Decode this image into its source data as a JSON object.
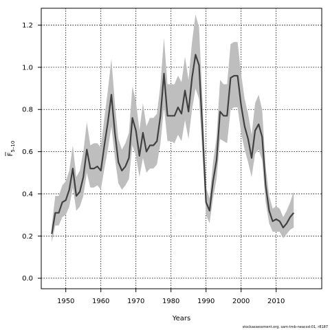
{
  "chart_data": {
    "type": "line",
    "xlabel": "Years",
    "ylabel": "F",
    "ylabel_sub": "5–10",
    "xlim": [
      1943,
      2023
    ],
    "ylim": [
      -0.05,
      1.28
    ],
    "xticks": [
      1950,
      1960,
      1970,
      1980,
      1990,
      2000,
      2010
    ],
    "xtick_labels": [
      "1950",
      "1960",
      "1970",
      "1980",
      "1990",
      "2000",
      "2010"
    ],
    "yticks": [
      0.0,
      0.2,
      0.4,
      0.6,
      0.8,
      1.0,
      1.2
    ],
    "ytick_labels": [
      "0.0",
      "0.2",
      "0.4",
      "0.6",
      "0.8",
      "1.0",
      "1.2"
    ],
    "grid": true,
    "caption": "stockassessment.org, sam-tmb-neacod-01, r8187",
    "colors": {
      "line": "#404040",
      "band": "#bebebe",
      "grid": "#000000"
    },
    "x": [
      1946,
      1947,
      1948,
      1949,
      1950,
      1951,
      1952,
      1953,
      1954,
      1955,
      1956,
      1957,
      1958,
      1959,
      1960,
      1961,
      1962,
      1963,
      1964,
      1965,
      1966,
      1967,
      1968,
      1969,
      1970,
      1971,
      1972,
      1973,
      1974,
      1975,
      1976,
      1977,
      1978,
      1979,
      1980,
      1981,
      1982,
      1983,
      1984,
      1985,
      1986,
      1987,
      1988,
      1989,
      1990,
      1991,
      1992,
      1993,
      1994,
      1995,
      1996,
      1997,
      1998,
      1999,
      2000,
      2001,
      2002,
      2003,
      2004,
      2005,
      2006,
      2007,
      2008,
      2009,
      2010,
      2011,
      2012,
      2013,
      2014,
      2015
    ],
    "series": [
      {
        "role": "estimate",
        "values": [
          0.21,
          0.31,
          0.31,
          0.36,
          0.37,
          0.42,
          0.52,
          0.39,
          0.41,
          0.48,
          0.61,
          0.52,
          0.52,
          0.53,
          0.51,
          0.63,
          0.74,
          0.87,
          0.69,
          0.55,
          0.51,
          0.53,
          0.57,
          0.76,
          0.7,
          0.58,
          0.69,
          0.6,
          0.63,
          0.63,
          0.65,
          0.77,
          0.97,
          0.77,
          0.77,
          0.77,
          0.81,
          0.78,
          0.89,
          0.79,
          0.95,
          1.06,
          1.01,
          0.7,
          0.36,
          0.32,
          0.46,
          0.56,
          0.79,
          0.77,
          0.77,
          0.95,
          0.96,
          0.96,
          0.82,
          0.72,
          0.66,
          0.57,
          0.7,
          0.73,
          0.67,
          0.44,
          0.32,
          0.27,
          0.28,
          0.27,
          0.24,
          0.26,
          0.29,
          0.31
        ]
      },
      {
        "role": "upper",
        "values": [
          0.25,
          0.39,
          0.39,
          0.44,
          0.46,
          0.51,
          0.63,
          0.48,
          0.51,
          0.6,
          0.74,
          0.63,
          0.64,
          0.64,
          0.62,
          0.76,
          0.89,
          1.04,
          0.83,
          0.66,
          0.61,
          0.64,
          0.69,
          0.91,
          0.84,
          0.7,
          0.83,
          0.72,
          0.76,
          0.76,
          0.78,
          0.92,
          1.14,
          0.92,
          0.92,
          0.92,
          0.96,
          0.93,
          1.05,
          0.94,
          1.12,
          1.25,
          1.19,
          0.84,
          0.43,
          0.38,
          0.55,
          0.67,
          0.94,
          0.92,
          0.92,
          1.11,
          1.12,
          1.12,
          0.97,
          0.85,
          0.78,
          0.68,
          0.83,
          0.87,
          0.8,
          0.53,
          0.39,
          0.33,
          0.34,
          0.33,
          0.29,
          0.32,
          0.36,
          0.41
        ]
      },
      {
        "role": "lower",
        "values": [
          0.17,
          0.25,
          0.25,
          0.29,
          0.3,
          0.34,
          0.43,
          0.32,
          0.34,
          0.39,
          0.5,
          0.43,
          0.43,
          0.44,
          0.42,
          0.52,
          0.61,
          0.72,
          0.57,
          0.45,
          0.42,
          0.44,
          0.47,
          0.63,
          0.58,
          0.48,
          0.57,
          0.5,
          0.52,
          0.52,
          0.54,
          0.64,
          0.81,
          0.65,
          0.65,
          0.64,
          0.68,
          0.65,
          0.75,
          0.66,
          0.8,
          0.9,
          0.85,
          0.58,
          0.3,
          0.26,
          0.38,
          0.47,
          0.66,
          0.65,
          0.64,
          0.8,
          0.81,
          0.81,
          0.69,
          0.61,
          0.55,
          0.48,
          0.59,
          0.61,
          0.56,
          0.36,
          0.26,
          0.22,
          0.22,
          0.22,
          0.19,
          0.21,
          0.23,
          0.24
        ]
      }
    ]
  }
}
